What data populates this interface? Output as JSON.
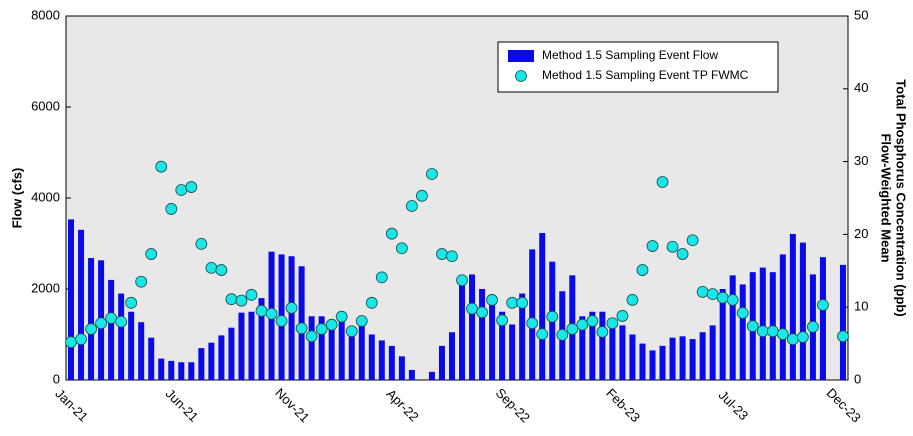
{
  "chart_data": {
    "type": "bar_scatter",
    "ylabel": "Flow (cfs)",
    "y2label": [
      "Flow-Weighted Mean",
      "Total Phosphorus Concentration (ppb)"
    ],
    "categories": [
      "Jan-21",
      null,
      null,
      null,
      null,
      null,
      null,
      null,
      null,
      null,
      null,
      "Jun-21",
      null,
      null,
      null,
      null,
      null,
      null,
      null,
      null,
      null,
      null,
      "Nov-21",
      null,
      null,
      null,
      null,
      null,
      null,
      null,
      null,
      null,
      null,
      "Apr-22",
      null,
      null,
      null,
      null,
      null,
      null,
      null,
      null,
      null,
      null,
      "Sep-22",
      null,
      null,
      null,
      null,
      null,
      null,
      null,
      null,
      null,
      null,
      "Feb-23",
      null,
      null,
      null,
      null,
      null,
      null,
      null,
      null,
      null,
      null,
      "Jul-23",
      null,
      null,
      null,
      null,
      null,
      null,
      null,
      null,
      null,
      null,
      "Dec-23"
    ],
    "series": [
      {
        "name": "Method 1.5 Sampling Event Flow",
        "kind": "bar",
        "color": "#0a0ae6",
        "values": [
          3530,
          3300,
          2680,
          2630,
          2200,
          1900,
          1500,
          1270,
          930,
          470,
          420,
          390,
          390,
          700,
          820,
          980,
          1150,
          1480,
          1500,
          1800,
          2820,
          2760,
          2720,
          2500,
          1400,
          1400,
          1300,
          1300,
          1000,
          1200,
          1000,
          870,
          750,
          520,
          220,
          null,
          180,
          750,
          1050,
          2200,
          2320,
          2000,
          1720,
          1500,
          1220,
          1900,
          2870,
          3230,
          2600,
          1950,
          2300,
          1400,
          1500,
          1500,
          1300,
          1200,
          1000,
          800,
          650,
          750,
          930,
          960,
          900,
          1050,
          1200,
          2000,
          2300,
          2100,
          2370,
          2470,
          2370,
          2760,
          3210,
          3020,
          2320,
          2700,
          null,
          2530
        ]
      },
      {
        "name": "Method 1.5 Sampling Event TP FWMC",
        "kind": "scatter",
        "axis": "y2",
        "color": "#19e6e6",
        "values": [
          5.2,
          5.6,
          7.0,
          7.8,
          8.5,
          8.0,
          10.6,
          13.5,
          17.3,
          29.3,
          23.5,
          26.1,
          26.5,
          18.7,
          15.4,
          15.1,
          11.1,
          10.9,
          11.7,
          9.5,
          9.1,
          8.1,
          9.9,
          7.1,
          6.0,
          7.0,
          7.6,
          8.7,
          6.7,
          8.1,
          10.6,
          14.1,
          20.1,
          18.1,
          23.9,
          25.3,
          28.3,
          17.3,
          17.0,
          13.7,
          9.8,
          9.3,
          11.0,
          8.2,
          10.6,
          10.6,
          7.8,
          6.3,
          8.7,
          6.2,
          7.0,
          7.6,
          8.1,
          6.6,
          7.8,
          8.8,
          11.0,
          15.1,
          18.4,
          27.2,
          18.3,
          17.3,
          19.2,
          12.1,
          11.8,
          11.3,
          11.0,
          9.2,
          7.4,
          6.7,
          6.7,
          6.3,
          5.6,
          5.9,
          7.3,
          10.3,
          null,
          6.0
        ]
      }
    ],
    "ylim": [
      0,
      8000
    ],
    "yticks": [
      0,
      2000,
      4000,
      6000,
      8000
    ],
    "y2lim": [
      0,
      50
    ],
    "y2ticks": [
      0,
      10,
      20,
      30,
      40,
      50
    ],
    "grid": false,
    "legend": "top-right"
  }
}
